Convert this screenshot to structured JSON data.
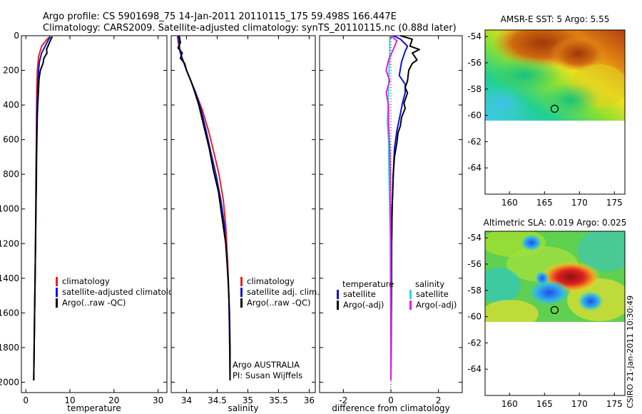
{
  "title": {
    "line1": "Argo profile: CS 5901698_75 14-Jan-2011 20110115_175 59.498S 166.447E",
    "line2": "Climatology: CARS2009. Satellite-adjusted climatology: synTS_20110115.nc (0.88d later)"
  },
  "side_text": "CSIRO 21-Jan-2011 10:30:49",
  "colors": {
    "climatology": "#e8231c",
    "satellite": "#1010d8",
    "argo": "#000000",
    "satellite_diff": "#28d8e0",
    "argo_salinity_diff": "#e020e0"
  },
  "chart_data": [
    {
      "id": "temperature",
      "type": "line",
      "xlabel": "temperature",
      "ylabel": "",
      "xlim": [
        -1,
        32
      ],
      "ylim": [
        2060,
        0
      ],
      "xticks": [
        0,
        10,
        20,
        30
      ],
      "yticks": [
        0,
        200,
        400,
        600,
        800,
        1000,
        1200,
        1400,
        1600,
        1800,
        2000
      ],
      "legend": [
        "climatology",
        "satellite-adjusted climatology",
        "Argo(..raw -QC)"
      ],
      "legend_position": "right",
      "series": [
        {
          "name": "climatology",
          "color_key": "climatology",
          "points": [
            [
              5.5,
              5
            ],
            [
              4.8,
              20
            ],
            [
              3.6,
              60
            ],
            [
              2.9,
              120
            ],
            [
              2.6,
              200
            ],
            [
              2.5,
              300
            ],
            [
              2.45,
              400
            ],
            [
              2.4,
              600
            ],
            [
              2.3,
              800
            ],
            [
              2.25,
              1000
            ],
            [
              2.2,
              1200
            ],
            [
              2.1,
              1400
            ],
            [
              2.0,
              1600
            ],
            [
              1.9,
              1800
            ],
            [
              1.8,
              1990
            ]
          ]
        },
        {
          "name": "satellite-adjusted climatology",
          "color_key": "satellite",
          "points": [
            [
              5.6,
              5
            ],
            [
              5.2,
              20
            ],
            [
              4.4,
              60
            ],
            [
              3.6,
              100
            ],
            [
              3.1,
              150
            ],
            [
              2.9,
              200
            ],
            [
              2.7,
              300
            ],
            [
              2.55,
              400
            ],
            [
              2.45,
              600
            ],
            [
              2.35,
              800
            ],
            [
              2.3,
              1000
            ],
            [
              2.2,
              1200
            ],
            [
              2.1,
              1400
            ],
            [
              2.0,
              1600
            ],
            [
              1.9,
              1800
            ],
            [
              1.8,
              1990
            ]
          ]
        },
        {
          "name": "Argo(..raw -QC)",
          "color_key": "argo",
          "points": [
            [
              6.0,
              5
            ],
            [
              5.7,
              20
            ],
            [
              5.2,
              50
            ],
            [
              4.7,
              80
            ],
            [
              4.8,
              100
            ],
            [
              4.1,
              130
            ],
            [
              3.9,
              160
            ],
            [
              3.3,
              200
            ],
            [
              3.0,
              250
            ],
            [
              2.9,
              300
            ],
            [
              2.75,
              380
            ],
            [
              2.6,
              460
            ],
            [
              2.55,
              550
            ],
            [
              2.45,
              700
            ],
            [
              2.4,
              850
            ],
            [
              2.3,
              1000
            ],
            [
              2.2,
              1200
            ],
            [
              2.1,
              1400
            ],
            [
              2.0,
              1600
            ],
            [
              1.9,
              1800
            ],
            [
              1.8,
              1990
            ]
          ]
        }
      ]
    },
    {
      "id": "salinity",
      "type": "line",
      "xlabel": "salinity",
      "ylabel": "",
      "xlim": [
        33.75,
        36.1
      ],
      "ylim": [
        2060,
        0
      ],
      "xticks": [
        34,
        34.5,
        35,
        35.5,
        36
      ],
      "legend": [
        "climatology",
        "satellite adj. clim.",
        "Argo(..raw -QC)"
      ],
      "legend_position": "right",
      "annotation": [
        "Argo AUSTRALIA",
        "PI: Susan Wijffels"
      ],
      "series": [
        {
          "name": "climatology",
          "color_key": "climatology",
          "points": [
            [
              33.85,
              0
            ],
            [
              33.87,
              50
            ],
            [
              33.9,
              100
            ],
            [
              33.95,
              150
            ],
            [
              34.0,
              200
            ],
            [
              34.07,
              260
            ],
            [
              34.15,
              330
            ],
            [
              34.26,
              430
            ],
            [
              34.36,
              550
            ],
            [
              34.45,
              680
            ],
            [
              34.53,
              800
            ],
            [
              34.6,
              950
            ],
            [
              34.64,
              1100
            ],
            [
              34.67,
              1300
            ],
            [
              34.69,
              1500
            ],
            [
              34.7,
              1700
            ],
            [
              34.71,
              1990
            ]
          ]
        },
        {
          "name": "satellite adj. clim.",
          "color_key": "satellite",
          "points": [
            [
              33.87,
              0
            ],
            [
              33.88,
              50
            ],
            [
              33.9,
              100
            ],
            [
              33.95,
              150
            ],
            [
              34.0,
              200
            ],
            [
              34.07,
              260
            ],
            [
              34.15,
              330
            ],
            [
              34.24,
              430
            ],
            [
              34.32,
              550
            ],
            [
              34.4,
              680
            ],
            [
              34.48,
              800
            ],
            [
              34.56,
              950
            ],
            [
              34.62,
              1100
            ],
            [
              34.66,
              1300
            ],
            [
              34.69,
              1500
            ],
            [
              34.7,
              1700
            ],
            [
              34.71,
              1990
            ]
          ]
        },
        {
          "name": "Argo(..raw -QC)",
          "color_key": "argo",
          "points": [
            [
              33.88,
              0
            ],
            [
              33.9,
              40
            ],
            [
              33.86,
              70
            ],
            [
              33.93,
              100
            ],
            [
              33.9,
              130
            ],
            [
              33.97,
              160
            ],
            [
              34.0,
              200
            ],
            [
              34.06,
              250
            ],
            [
              34.12,
              310
            ],
            [
              34.2,
              400
            ],
            [
              34.28,
              520
            ],
            [
              34.37,
              650
            ],
            [
              34.44,
              780
            ],
            [
              34.52,
              900
            ],
            [
              34.58,
              1050
            ],
            [
              34.64,
              1200
            ],
            [
              34.68,
              1400
            ],
            [
              34.7,
              1600
            ],
            [
              34.71,
              1800
            ],
            [
              34.71,
              1990
            ]
          ]
        }
      ]
    },
    {
      "id": "difference",
      "type": "line",
      "xlabel": "difference from climatology",
      "ylabel": "",
      "xlim": [
        -3,
        3
      ],
      "ylim": [
        2060,
        0
      ],
      "xticks": [
        -2,
        0,
        2
      ],
      "legend_groups": [
        {
          "title": "temperature",
          "items": [
            "satellite",
            "Argo(-adj)"
          ]
        },
        {
          "title": "salinity",
          "items": [
            "satellite",
            "Argo(-adj)"
          ]
        }
      ],
      "legend_position": "bottom",
      "series": [
        {
          "name": "satellite",
          "group": "temperature",
          "color_key": "satellite",
          "points": [
            [
              0.1,
              0
            ],
            [
              0.4,
              20
            ],
            [
              0.7,
              60
            ],
            [
              0.6,
              90
            ],
            [
              0.45,
              150
            ],
            [
              0.35,
              230
            ],
            [
              0.6,
              280
            ],
            [
              0.6,
              330
            ],
            [
              0.5,
              380
            ],
            [
              0.4,
              450
            ],
            [
              0.25,
              550
            ],
            [
              0.15,
              650
            ],
            [
              0.1,
              800
            ],
            [
              0.05,
              1000
            ],
            [
              0.03,
              1200
            ],
            [
              0.02,
              1500
            ],
            [
              0.0,
              1990
            ]
          ]
        },
        {
          "name": "Argo(-adj)",
          "group": "temperature",
          "color_key": "argo",
          "points": [
            [
              0.4,
              0
            ],
            [
              0.9,
              20
            ],
            [
              0.8,
              60
            ],
            [
              1.2,
              80
            ],
            [
              0.9,
              100
            ],
            [
              1.1,
              140
            ],
            [
              0.9,
              160
            ],
            [
              0.75,
              200
            ],
            [
              0.7,
              260
            ],
            [
              0.6,
              300
            ],
            [
              0.7,
              330
            ],
            [
              0.55,
              390
            ],
            [
              0.6,
              420
            ],
            [
              0.45,
              470
            ],
            [
              0.4,
              520
            ],
            [
              0.3,
              560
            ],
            [
              0.25,
              620
            ],
            [
              0.15,
              700
            ],
            [
              0.1,
              800
            ],
            [
              0.05,
              1000
            ],
            [
              0.03,
              1200
            ],
            [
              0.02,
              1500
            ],
            [
              0.0,
              1990
            ]
          ]
        },
        {
          "name": "satellite",
          "group": "salinity",
          "color_key": "satellite_diff",
          "points": [
            [
              -0.05,
              0
            ],
            [
              -0.05,
              100
            ],
            [
              -0.1,
              300
            ],
            [
              -0.15,
              500
            ],
            [
              -0.1,
              600
            ],
            [
              -0.08,
              800
            ],
            [
              -0.05,
              1000
            ],
            [
              -0.03,
              1200
            ],
            [
              -0.02,
              1500
            ],
            [
              0.0,
              1990
            ]
          ]
        },
        {
          "name": "Argo(-adj)",
          "group": "salinity",
          "color_key": "argo_salinity_diff",
          "points": [
            [
              0.0,
              0
            ],
            [
              0.25,
              30
            ],
            [
              0.1,
              80
            ],
            [
              -0.1,
              140
            ],
            [
              -0.2,
              200
            ],
            [
              -0.05,
              260
            ],
            [
              -0.2,
              330
            ],
            [
              -0.1,
              400
            ],
            [
              -0.1,
              500
            ],
            [
              -0.05,
              650
            ],
            [
              -0.03,
              800
            ],
            [
              -0.02,
              1000
            ],
            [
              0.0,
              1200
            ],
            [
              0.0,
              1990
            ]
          ]
        }
      ]
    },
    {
      "id": "sst_map",
      "type": "heatmap",
      "title": "AMSR-E SST: 5 Argo: 5.55",
      "xlim": [
        156.5,
        176.5
      ],
      "ylim": [
        -66,
        -53.5
      ],
      "xticks": [
        160,
        165,
        170,
        175
      ],
      "yticks": [
        -54,
        -56,
        -58,
        -60,
        -62,
        -64
      ],
      "data_extent_lat": [
        -60.1,
        -53.5
      ],
      "marker": {
        "lon": 166.447,
        "lat": -59.498
      }
    },
    {
      "id": "sla_map",
      "type": "heatmap",
      "title": "Altimetric SLA: 0.019 Argo: 0.025",
      "xlim": [
        156.5,
        176.5
      ],
      "ylim": [
        -66,
        -53.5
      ],
      "xticks": [
        160,
        165,
        170,
        175
      ],
      "yticks": [
        -54,
        -56,
        -58,
        -60,
        -62,
        -64
      ],
      "data_extent_lat": [
        -60.1,
        -53.5
      ],
      "marker": {
        "lon": 166.447,
        "lat": -59.498
      }
    }
  ]
}
